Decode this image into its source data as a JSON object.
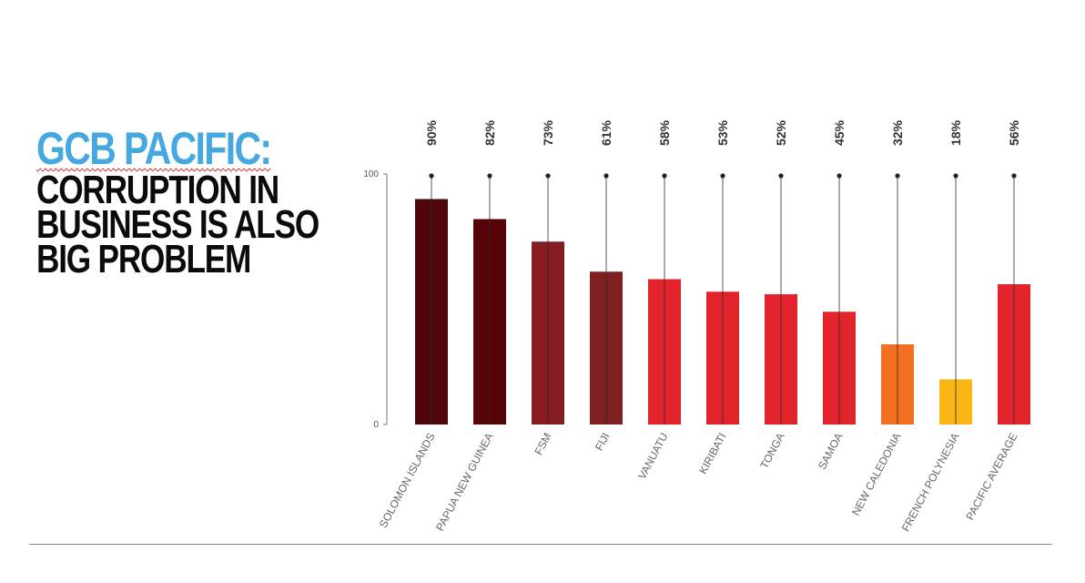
{
  "slide": {
    "title_line1": "GCB PACIFIC:",
    "title_line2": "CORRUPTION IN",
    "title_line3": "BUSINESS IS ALSO",
    "title_line4": "BIG PROBLEM"
  },
  "chart_data": {
    "type": "bar",
    "title": "",
    "xlabel": "",
    "ylabel": "",
    "ylim": [
      0,
      100
    ],
    "yticks": [
      "0",
      "100"
    ],
    "grid": false,
    "categories": [
      "SOLOMON ISLANDS",
      "PAPUA NEW GUINEA",
      "FSM",
      "FIJI",
      "VANUATU",
      "KIRIBATI",
      "TONGA",
      "SAMOA",
      "NEW CALEDONIA",
      "FRENCH POLYNESIA",
      "PACIFIC AVERAGE"
    ],
    "values": [
      90,
      82,
      73,
      61,
      58,
      53,
      52,
      45,
      32,
      18,
      56
    ],
    "value_labels": [
      "90%",
      "82%",
      "73%",
      "61%",
      "58%",
      "53%",
      "52%",
      "45%",
      "32%",
      "18%",
      "56%"
    ],
    "colors": [
      "#4e0608",
      "#560407",
      "#861c20",
      "#7e1f22",
      "#e3232c",
      "#e3232c",
      "#e3232c",
      "#e3232c",
      "#f37022",
      "#fbb615",
      "#e3232c"
    ]
  }
}
